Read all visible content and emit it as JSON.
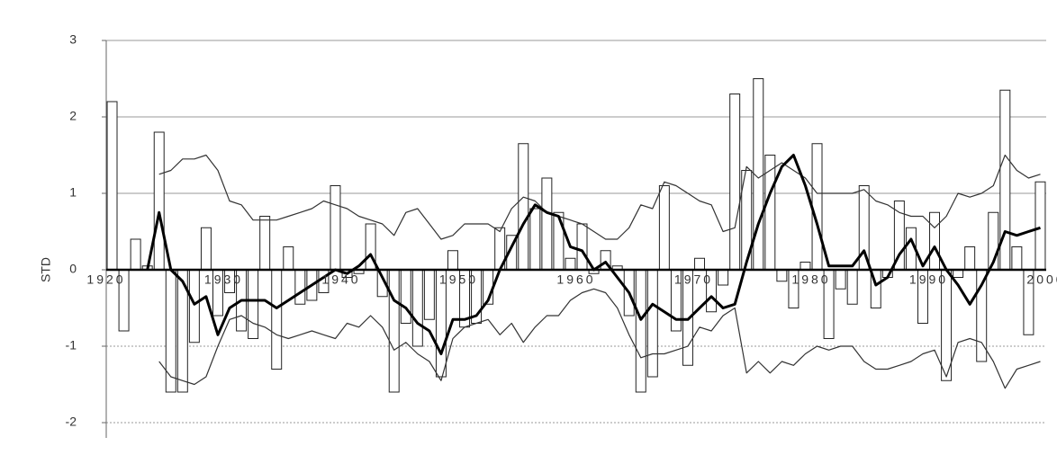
{
  "chart_data": {
    "type": "bar",
    "y_label": "STD",
    "x": [
      1921,
      1922,
      1923,
      1924,
      1925,
      1926,
      1927,
      1928,
      1929,
      1930,
      1931,
      1932,
      1933,
      1934,
      1935,
      1936,
      1937,
      1938,
      1939,
      1940,
      1941,
      1942,
      1943,
      1944,
      1945,
      1946,
      1947,
      1948,
      1949,
      1950,
      1951,
      1952,
      1953,
      1954,
      1955,
      1956,
      1957,
      1958,
      1959,
      1960,
      1961,
      1962,
      1963,
      1964,
      1965,
      1966,
      1967,
      1968,
      1969,
      1970,
      1971,
      1972,
      1973,
      1974,
      1975,
      1976,
      1977,
      1978,
      1979,
      1980,
      1981,
      1982,
      1983,
      1984,
      1985,
      1986,
      1987,
      1988,
      1989,
      1990,
      1991,
      1992,
      1993,
      1994,
      1995,
      1996,
      1997,
      1998,
      1999,
      2000
    ],
    "series": [
      {
        "type": "bar",
        "color": "#ffffff",
        "values": [
          2.2,
          -0.8,
          0.4,
          0.05,
          1.8,
          -1.6,
          -1.6,
          -0.95,
          0.55,
          -0.6,
          -0.3,
          -0.8,
          -0.9,
          0.7,
          -1.3,
          0.3,
          -0.45,
          -0.4,
          -0.3,
          1.1,
          -0.1,
          -0.05,
          0.6,
          -0.35,
          -1.6,
          -0.7,
          -1.0,
          -0.65,
          -1.4,
          0.25,
          -0.75,
          -0.7,
          -0.45,
          0.55,
          0.45,
          1.65,
          0.8,
          1.2,
          0.75,
          0.15,
          0.6,
          -0.05,
          0.25,
          0.05,
          -0.6,
          -1.6,
          -1.4,
          1.1,
          -0.8,
          -1.25,
          0.15,
          -0.55,
          -0.2,
          2.3,
          1.3,
          2.5,
          1.5,
          -0.15,
          -0.5,
          0.1,
          1.65,
          -0.9,
          -0.25,
          -0.45,
          1.1,
          -0.5,
          -0.1,
          0.9,
          0.55,
          -0.7,
          0.75,
          -1.45,
          -0.1,
          0.3,
          -1.2,
          0.75,
          2.35,
          0.3,
          -0.85,
          1.15
        ]
      },
      {
        "type": "line",
        "color": "#333333",
        "values": [
          null,
          null,
          null,
          null,
          1.25,
          1.3,
          1.45,
          1.45,
          1.5,
          1.3,
          0.9,
          0.85,
          0.65,
          0.65,
          0.65,
          0.7,
          0.75,
          0.8,
          0.9,
          0.85,
          0.8,
          0.7,
          0.65,
          0.6,
          0.45,
          0.75,
          0.8,
          0.6,
          0.4,
          0.45,
          0.6,
          0.6,
          0.6,
          0.5,
          0.8,
          0.95,
          0.9,
          0.75,
          0.7,
          0.65,
          0.6,
          0.5,
          0.4,
          0.4,
          0.55,
          0.85,
          0.8,
          1.15,
          1.1,
          1.0,
          0.9,
          0.85,
          0.5,
          0.55,
          1.35,
          1.2,
          1.3,
          1.4,
          1.3,
          1.2,
          1.0,
          1.0,
          1.0,
          1.0,
          1.05,
          0.9,
          0.85,
          0.75,
          0.7,
          0.7,
          0.55,
          0.7,
          1.0,
          0.95,
          1.0,
          1.1,
          1.5,
          1.3,
          1.2,
          1.25
        ]
      },
      {
        "type": "line",
        "color": "#333333",
        "values": [
          null,
          null,
          null,
          null,
          -1.2,
          -1.4,
          -1.45,
          -1.5,
          -1.4,
          -1.0,
          -0.65,
          -0.6,
          -0.7,
          -0.75,
          -0.85,
          -0.9,
          -0.85,
          -0.8,
          -0.85,
          -0.9,
          -0.7,
          -0.75,
          -0.6,
          -0.75,
          -1.05,
          -0.95,
          -1.1,
          -1.2,
          -1.45,
          -0.9,
          -0.75,
          -0.7,
          -0.65,
          -0.85,
          -0.7,
          -0.95,
          -0.75,
          -0.6,
          -0.6,
          -0.4,
          -0.3,
          -0.25,
          -0.3,
          -0.5,
          -0.85,
          -1.15,
          -1.1,
          -1.1,
          -1.05,
          -1.0,
          -0.75,
          -0.8,
          -0.6,
          -0.5,
          -1.35,
          -1.2,
          -1.35,
          -1.2,
          -1.25,
          -1.1,
          -1.0,
          -1.05,
          -1.0,
          -1.0,
          -1.2,
          -1.3,
          -1.3,
          -1.25,
          -1.2,
          -1.1,
          -1.05,
          -1.4,
          -0.95,
          -0.9,
          -0.95,
          -1.2,
          -1.55,
          -1.3,
          -1.25,
          -1.2
        ]
      },
      {
        "type": "line",
        "color": "#000000",
        "bold": true,
        "values": [
          null,
          null,
          null,
          0,
          0.75,
          0,
          -0.15,
          -0.45,
          -0.35,
          -0.85,
          -0.5,
          -0.4,
          -0.4,
          -0.4,
          -0.5,
          -0.4,
          -0.3,
          -0.2,
          -0.1,
          0,
          -0.05,
          0.05,
          0.2,
          -0.1,
          -0.4,
          -0.5,
          -0.7,
          -0.8,
          -1.1,
          -0.65,
          -0.65,
          -0.6,
          -0.4,
          0,
          0.3,
          0.6,
          0.85,
          0.75,
          0.7,
          0.3,
          0.25,
          0,
          0.1,
          -0.1,
          -0.3,
          -0.65,
          -0.45,
          -0.55,
          -0.65,
          -0.65,
          -0.5,
          -0.35,
          -0.5,
          -0.45,
          0.1,
          0.6,
          1.0,
          1.35,
          1.5,
          1.1,
          0.6,
          0.05,
          0.05,
          0.05,
          0.25,
          -0.2,
          -0.1,
          0.2,
          0.4,
          0.05,
          0.3,
          0,
          -0.2,
          -0.45,
          -0.2,
          0.1,
          0.5,
          0.45,
          0.5,
          0.55
        ]
      }
    ],
    "xlim": [
      1920,
      2000
    ],
    "xticks": [
      1920,
      1930,
      1940,
      1950,
      1960,
      1970,
      1980,
      1990,
      2000
    ],
    "ylim": [
      -2.2,
      3
    ],
    "yticks": [
      -2,
      -1,
      0,
      1,
      2,
      3
    ],
    "grid": true
  }
}
